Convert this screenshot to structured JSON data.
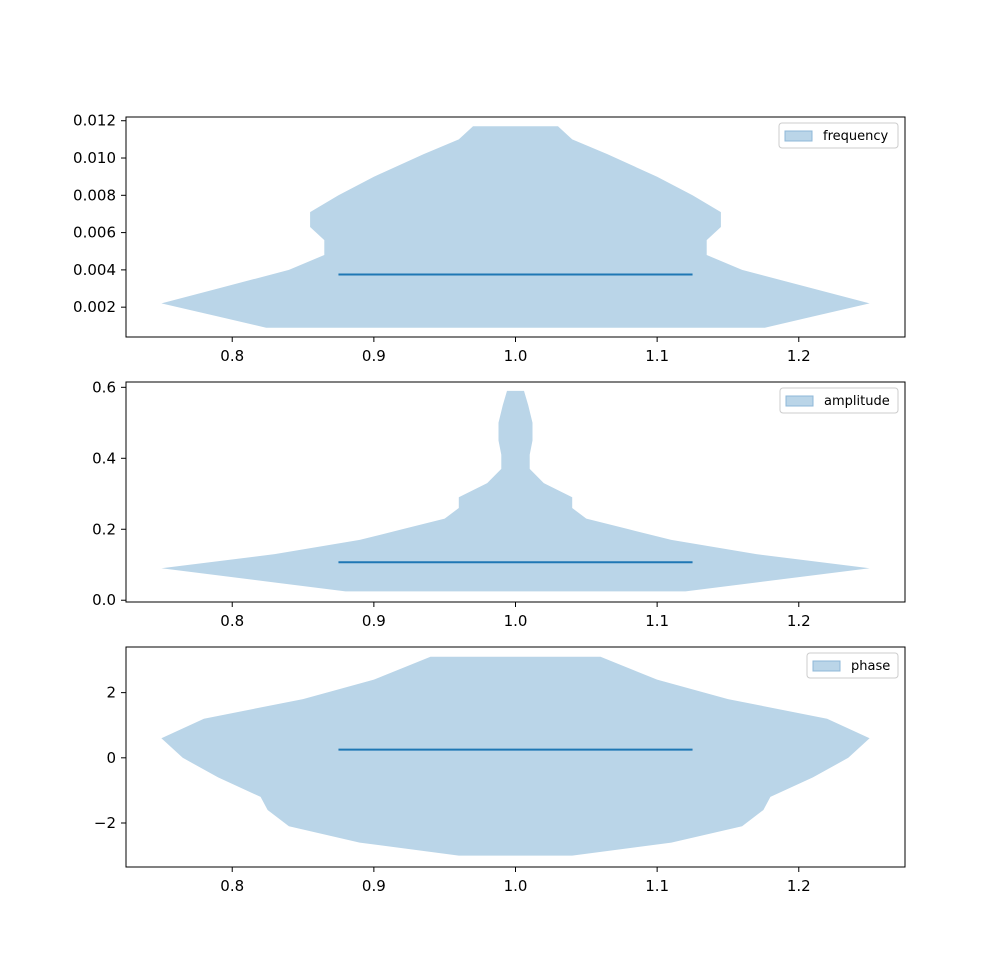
{
  "colors": {
    "violin_fill": "#bad5e8",
    "median_line": "#1f77b4",
    "legend_patch": "#bad5e8",
    "legend_patch_edge": "#8fb8d8",
    "axes_edge": "#000000",
    "legend_edge": "#cccccc"
  },
  "chart_data": [
    {
      "type": "violin",
      "legend": "frequency",
      "legend_loc": "upper right",
      "xlim": [
        0.725,
        1.275
      ],
      "ylim": [
        0.0004,
        0.0122
      ],
      "xticks": [
        0.8,
        0.9,
        1.0,
        1.1,
        1.2
      ],
      "xtick_labels": [
        "0.8",
        "0.9",
        "1.0",
        "1.1",
        "1.2"
      ],
      "yticks": [
        0.002,
        0.004,
        0.006,
        0.008,
        0.01,
        0.012
      ],
      "ytick_labels": [
        "0.002",
        "0.004",
        "0.006",
        "0.008",
        "0.010",
        "0.012"
      ],
      "position": 1.0,
      "data_min": 0.0009,
      "data_max": 0.0117,
      "median": 0.00375,
      "median_span": [
        0.875,
        1.125
      ],
      "profile": [
        [
          0.0009,
          0.176
        ],
        [
          0.0015,
          0.21
        ],
        [
          0.0022,
          0.25
        ],
        [
          0.003,
          0.21
        ],
        [
          0.004,
          0.16
        ],
        [
          0.0048,
          0.135
        ],
        [
          0.0056,
          0.135
        ],
        [
          0.0063,
          0.145
        ],
        [
          0.0071,
          0.145
        ],
        [
          0.008,
          0.125
        ],
        [
          0.009,
          0.1
        ],
        [
          0.0102,
          0.065
        ],
        [
          0.011,
          0.04
        ],
        [
          0.0117,
          0.03
        ]
      ]
    },
    {
      "type": "violin",
      "legend": "amplitude",
      "legend_loc": "upper right",
      "xlim": [
        0.725,
        1.275
      ],
      "ylim": [
        -0.005,
        0.615
      ],
      "xticks": [
        0.8,
        0.9,
        1.0,
        1.1,
        1.2
      ],
      "xtick_labels": [
        "0.8",
        "0.9",
        "1.0",
        "1.1",
        "1.2"
      ],
      "yticks": [
        0.0,
        0.2,
        0.4,
        0.6
      ],
      "ytick_labels": [
        "0.0",
        "0.2",
        "0.4",
        "0.6"
      ],
      "position": 1.0,
      "data_min": 0.025,
      "data_max": 0.59,
      "median": 0.107,
      "median_span": [
        0.875,
        1.125
      ],
      "profile": [
        [
          0.025,
          0.12
        ],
        [
          0.05,
          0.17
        ],
        [
          0.09,
          0.25
        ],
        [
          0.13,
          0.17
        ],
        [
          0.17,
          0.11
        ],
        [
          0.2,
          0.08
        ],
        [
          0.23,
          0.05
        ],
        [
          0.26,
          0.04
        ],
        [
          0.29,
          0.04
        ],
        [
          0.33,
          0.02
        ],
        [
          0.37,
          0.01
        ],
        [
          0.41,
          0.01
        ],
        [
          0.45,
          0.012
        ],
        [
          0.5,
          0.012
        ],
        [
          0.55,
          0.009
        ],
        [
          0.59,
          0.006
        ]
      ]
    },
    {
      "type": "violin",
      "legend": "phase",
      "legend_loc": "upper right",
      "xlim": [
        0.725,
        1.275
      ],
      "ylim": [
        -3.35,
        3.4
      ],
      "xticks": [
        0.8,
        0.9,
        1.0,
        1.1,
        1.2
      ],
      "xtick_labels": [
        "0.8",
        "0.9",
        "1.0",
        "1.1",
        "1.2"
      ],
      "yticks": [
        -2,
        0,
        2
      ],
      "ytick_labels": [
        "−2",
        "0",
        "2"
      ],
      "position": 1.0,
      "data_min": -3.0,
      "data_max": 3.1,
      "median": 0.25,
      "median_span": [
        0.875,
        1.125
      ],
      "profile": [
        [
          -3.0,
          0.04
        ],
        [
          -2.6,
          0.11
        ],
        [
          -2.1,
          0.16
        ],
        [
          -1.6,
          0.175
        ],
        [
          -1.2,
          0.18
        ],
        [
          -0.6,
          0.21
        ],
        [
          0.0,
          0.235
        ],
        [
          0.6,
          0.25
        ],
        [
          1.2,
          0.22
        ],
        [
          1.8,
          0.15
        ],
        [
          2.4,
          0.1
        ],
        [
          3.1,
          0.06
        ]
      ]
    }
  ]
}
